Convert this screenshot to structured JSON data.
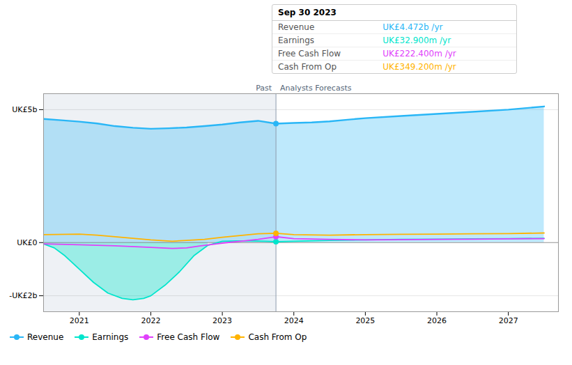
{
  "chart_data": {
    "type": "line",
    "xlim": [
      2020.5,
      2027.7
    ],
    "xticks": [
      2021,
      2022,
      2023,
      2024,
      2025,
      2026,
      2027
    ],
    "ylim": [
      -2.6,
      5.6
    ],
    "yticks": [
      {
        "value": -2,
        "label": "-UK£2b"
      },
      {
        "value": 0,
        "label": "UK£0"
      },
      {
        "value": 5,
        "label": "UK£5b"
      }
    ],
    "grid": true,
    "legend": "lower left",
    "series": [
      {
        "name": "Revenue",
        "color": "#29b6f6",
        "type": "area",
        "x": [
          2020.5,
          2020.75,
          2021.0,
          2021.25,
          2021.5,
          2021.75,
          2022.0,
          2022.25,
          2022.5,
          2022.75,
          2023.0,
          2023.25,
          2023.5,
          2023.75,
          2024.0,
          2024.25,
          2024.5,
          2024.75,
          2025.0,
          2025.5,
          2026.0,
          2026.5,
          2027.0,
          2027.5
        ],
        "values": [
          4.65,
          4.6,
          4.55,
          4.48,
          4.38,
          4.32,
          4.28,
          4.3,
          4.33,
          4.38,
          4.44,
          4.52,
          4.58,
          4.472,
          4.5,
          4.52,
          4.56,
          4.62,
          4.68,
          4.76,
          4.84,
          4.92,
          5.0,
          5.12
        ]
      },
      {
        "name": "Earnings",
        "color": "#00e5cc",
        "type": "negative_area",
        "x": [
          2020.5,
          2020.65,
          2020.8,
          2021.0,
          2021.2,
          2021.4,
          2021.6,
          2021.75,
          2021.9,
          2022.0,
          2022.2,
          2022.4,
          2022.6,
          2022.8,
          2023.0,
          2023.2,
          2023.4,
          2023.6,
          2023.75,
          2024.0,
          2024.5,
          2025.0,
          2025.5,
          2026.0,
          2026.5,
          2027.0,
          2027.5
        ],
        "values": [
          -0.05,
          -0.2,
          -0.5,
          -1.0,
          -1.5,
          -1.9,
          -2.1,
          -2.15,
          -2.1,
          -2.0,
          -1.6,
          -1.1,
          -0.5,
          -0.1,
          0.05,
          0.06,
          0.06,
          0.05,
          0.033,
          0.05,
          0.08,
          0.1,
          0.12,
          0.13,
          0.14,
          0.15,
          0.16
        ]
      },
      {
        "name": "Free Cash Flow",
        "color": "#e040fb",
        "type": "line",
        "x": [
          2020.5,
          2021.0,
          2021.5,
          2022.0,
          2022.3,
          2022.5,
          2022.7,
          2023.0,
          2023.3,
          2023.5,
          2023.75,
          2024.0,
          2024.5,
          2025.0,
          2025.5,
          2026.0,
          2026.5,
          2027.0,
          2027.5
        ],
        "values": [
          -0.05,
          -0.08,
          -0.12,
          -0.18,
          -0.22,
          -0.2,
          -0.12,
          -0.02,
          0.06,
          0.12,
          0.2224,
          0.15,
          0.12,
          0.1,
          0.11,
          0.12,
          0.13,
          0.14,
          0.15
        ]
      },
      {
        "name": "Cash From Op",
        "color": "#ffb300",
        "type": "line",
        "x": [
          2020.5,
          2021.0,
          2021.25,
          2021.5,
          2022.0,
          2022.3,
          2022.5,
          2022.75,
          2023.0,
          2023.3,
          2023.5,
          2023.75,
          2024.0,
          2024.5,
          2025.0,
          2025.5,
          2026.0,
          2026.5,
          2027.0,
          2027.5
        ],
        "values": [
          0.3,
          0.32,
          0.28,
          0.22,
          0.1,
          0.05,
          0.08,
          0.12,
          0.2,
          0.28,
          0.33,
          0.3492,
          0.3,
          0.28,
          0.3,
          0.31,
          0.32,
          0.33,
          0.34,
          0.36
        ]
      }
    ],
    "annotations": [
      {
        "type": "divider",
        "x": 2023.75,
        "labels": [
          "Past",
          "Analysts Forecasts"
        ]
      },
      {
        "type": "tooltip",
        "title": "Sep 30 2023",
        "rows": [
          {
            "label": "Revenue",
            "value": "UK£4.472b /yr",
            "color": "#29b6f6"
          },
          {
            "label": "Earnings",
            "value": "UK£32.900m /yr",
            "color": "#00e5cc"
          },
          {
            "label": "Free Cash Flow",
            "value": "UK£222.400m /yr",
            "color": "#e040fb"
          },
          {
            "label": "Cash From Op",
            "value": "UK£349.200m /yr",
            "color": "#ffb300"
          }
        ]
      }
    ]
  }
}
